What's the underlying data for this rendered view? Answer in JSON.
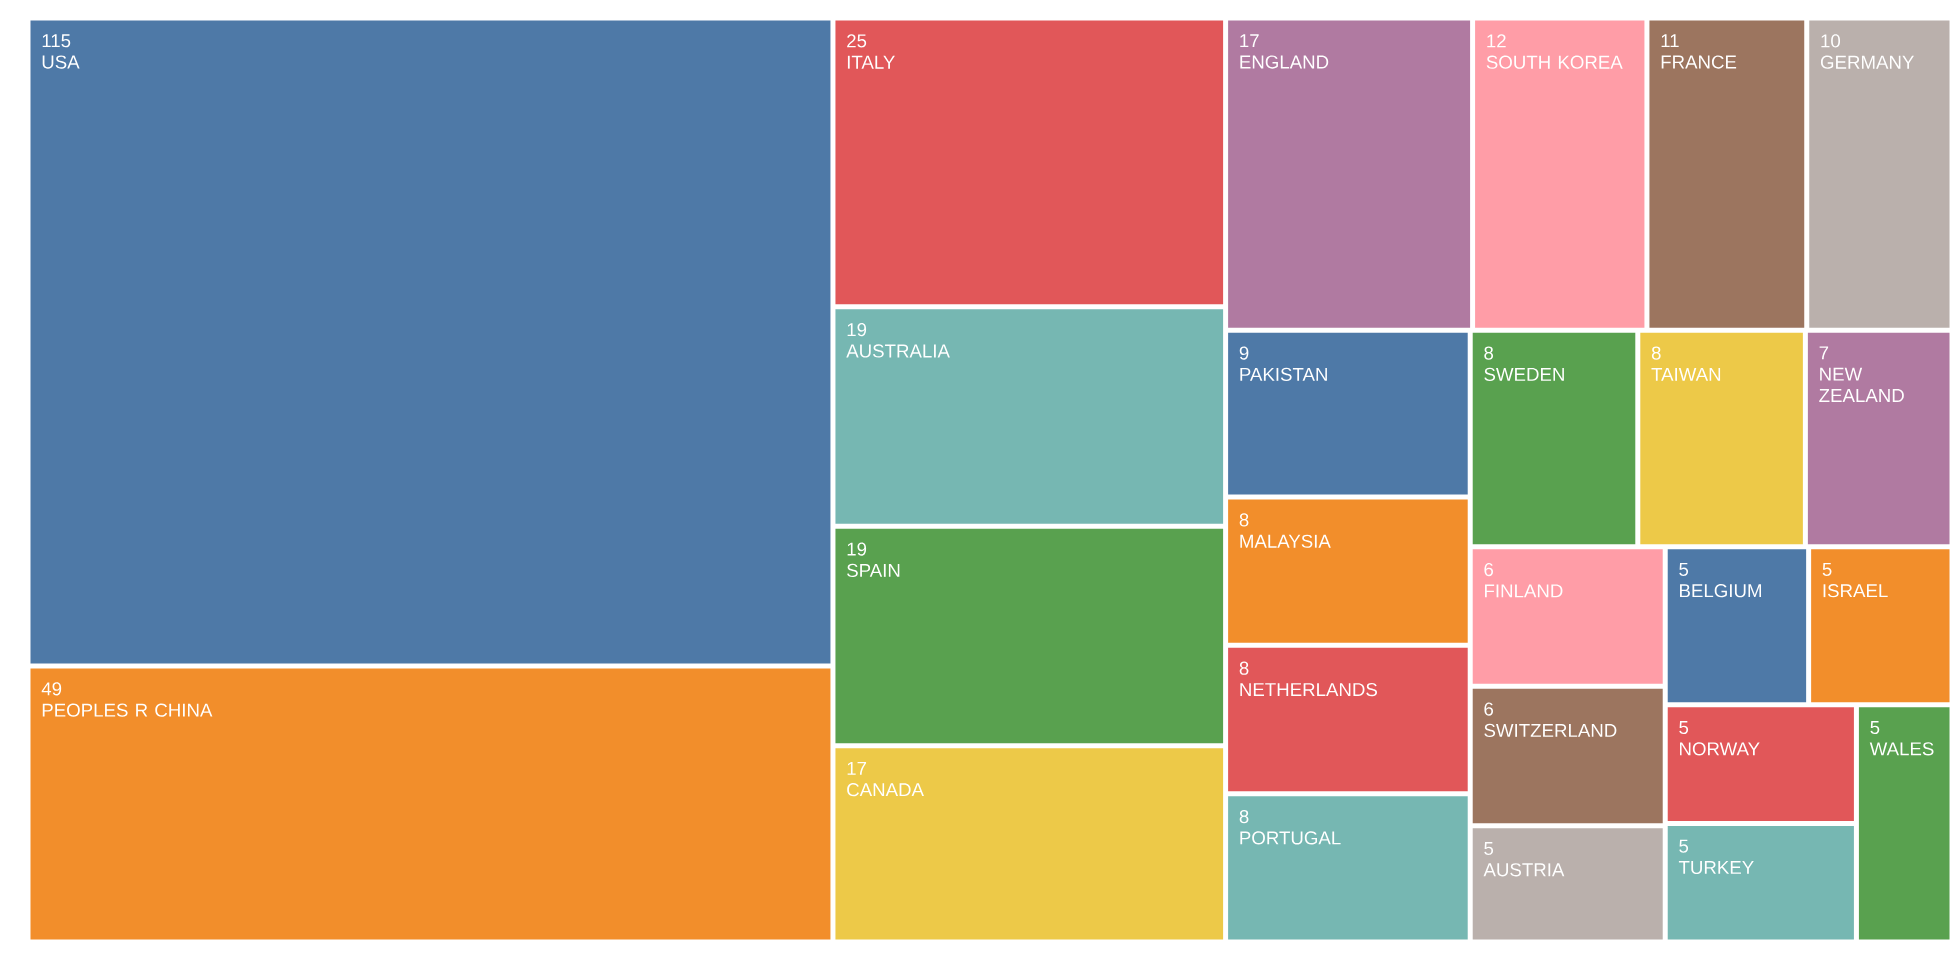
{
  "chart_data": {
    "type": "other",
    "categories": [
      "USA",
      "PEOPLES R CHINA",
      "ITALY",
      "AUSTRALIA",
      "SPAIN",
      "CANADA",
      "ENGLAND",
      "SOUTH KOREA",
      "FRANCE",
      "GERMANY",
      "PAKISTAN",
      "MALAYSIA",
      "NETHERLANDS",
      "PORTUGAL",
      "SWEDEN",
      "TAIWAN",
      "NEW ZEALAND",
      "FINLAND",
      "SWITZERLAND",
      "AUSTRIA",
      "BELGIUM",
      "ISRAEL",
      "NORWAY",
      "TURKEY",
      "WALES"
    ],
    "values": [
      115,
      49,
      25,
      19,
      19,
      17,
      17,
      12,
      11,
      10,
      9,
      8,
      8,
      8,
      8,
      8,
      7,
      6,
      6,
      5,
      5,
      5,
      5,
      5,
      5
    ],
    "colors": [
      "#4e79a7",
      "#f28e2b",
      "#e15759",
      "#76b7b2",
      "#59a14f",
      "#edc948",
      "#b07aa1",
      "#ff9da7",
      "#9c755f",
      "#bab0ac",
      "#4e79a7",
      "#f28e2b",
      "#e15759",
      "#76b7b2",
      "#59a14f",
      "#edc948",
      "#b07aa1",
      "#ff9da7",
      "#9c755f",
      "#bab0ac",
      "#4e79a7",
      "#f28e2b",
      "#e15759",
      "#76b7b2",
      "#59a14f"
    ],
    "data_labels": true
  }
}
